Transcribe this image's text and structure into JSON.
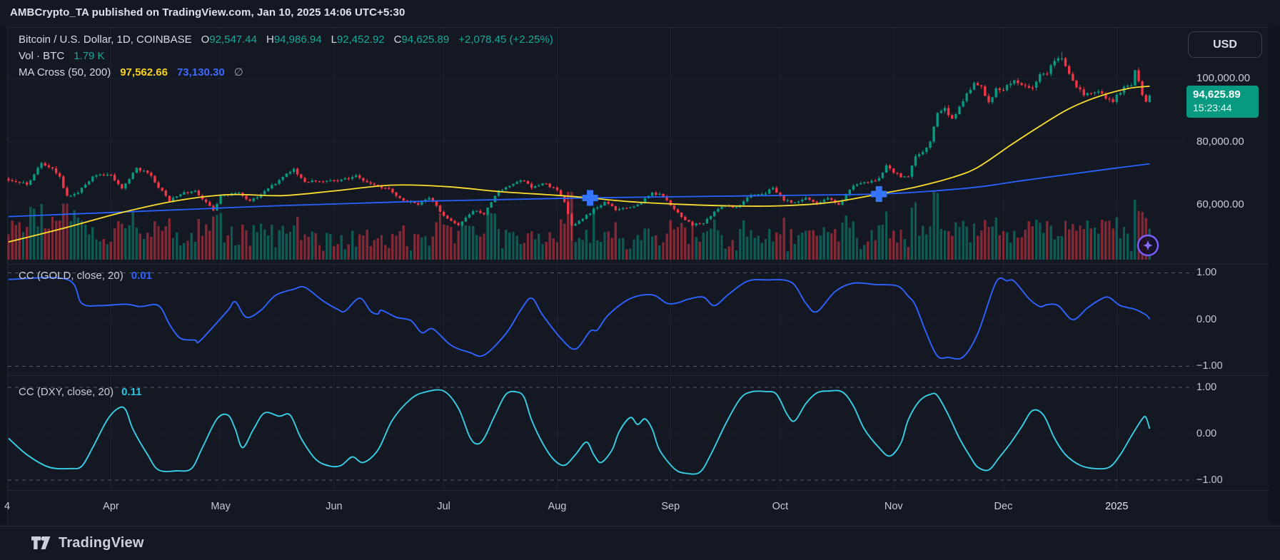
{
  "header": {
    "published_line": "AMBCrypto_TA published on TradingView.com, Jan 10, 2025 14:06 UTC+5:30"
  },
  "chart": {
    "legend": {
      "title": "Bitcoin / U.S. Dollar, 1D, COINBASE",
      "o_label": "O",
      "o": "92,547.44",
      "h_label": "H",
      "h": "94,986.94",
      "l_label": "L",
      "l": "92,452.92",
      "c_label": "C",
      "c": "94,625.89",
      "change": "+2,078.45 (+2.25%)",
      "vol_label": "Vol · BTC",
      "vol_value": "1.79 K",
      "ma_label": "MA Cross (50, 200)",
      "ma50_value": "97,562.66",
      "ma200_value": "73,130.30",
      "ma_suffix": "∅"
    },
    "price_axis": {
      "currency_button": "USD",
      "tick_100k": "100,000.00",
      "tick_80k": "80,000.00",
      "tick_60k": "60,000.00",
      "last_price": "94,625.89",
      "countdown": "15:23:44"
    },
    "pane_gold": {
      "label": "CC (GOLD, close, 20)",
      "value": "0.01",
      "tick_hi": "1.00",
      "tick_mid": "0.00",
      "tick_lo": "−1.00"
    },
    "pane_dxy": {
      "label": "CC (DXY, close, 20)",
      "value": "0.11",
      "tick_hi": "1.00",
      "tick_mid": "0.00",
      "tick_lo": "−1.00"
    },
    "time_axis": [
      {
        "label": "4",
        "d": 0
      },
      {
        "label": "Apr",
        "d": 28
      },
      {
        "label": "May",
        "d": 58
      },
      {
        "label": "Jun",
        "d": 89
      },
      {
        "label": "Jul",
        "d": 119
      },
      {
        "label": "Aug",
        "d": 150
      },
      {
        "label": "Sep",
        "d": 181
      },
      {
        "label": "Oct",
        "d": 211
      },
      {
        "label": "Nov",
        "d": 242
      },
      {
        "label": "Dec",
        "d": 272
      },
      {
        "label": "2025",
        "d": 303
      }
    ]
  },
  "footer": {
    "brand": "TradingView"
  },
  "colors": {
    "bg": "#141823",
    "grid": "#1d2230",
    "frame": "#242936",
    "separator": "#232837",
    "up": "#089981",
    "down": "#f23645",
    "vol_up": "rgba(8,153,129,0.5)",
    "vol_down": "rgba(242,54,69,0.5)",
    "ma50": "#fbde2f",
    "ma200": "#2962ff",
    "cc_gold": "#2f62ff",
    "cc_dxy": "#38cfe5",
    "marker_blue": "#3575ff",
    "accent_purple": "#7a5cff",
    "level_dash": "#565b66",
    "badge_green": "#089981"
  },
  "chart_data": {
    "type": "candlestick",
    "symbol": "Bitcoin / U.S. Dollar",
    "interval": "1D",
    "exchange": "COINBASE",
    "last_bar": {
      "open": 92547.44,
      "high": 94986.94,
      "low": 92452.92,
      "close": 94625.89,
      "change": 2078.45,
      "change_pct": 2.25
    },
    "volume_last_kbtc": 1.79,
    "price_axis_ticks": [
      100000,
      80000,
      60000
    ],
    "days_total": 312,
    "close_anchors_k": [
      [
        0,
        68.3
      ],
      [
        5,
        66.5
      ],
      [
        9,
        73.1
      ],
      [
        12,
        71.5
      ],
      [
        14,
        68.9
      ],
      [
        16,
        62.9
      ],
      [
        19,
        64.1
      ],
      [
        22,
        67.8
      ],
      [
        24,
        69.9
      ],
      [
        28,
        69.6
      ],
      [
        31,
        65.5
      ],
      [
        35,
        71.6
      ],
      [
        38,
        70.5
      ],
      [
        44,
        61.3
      ],
      [
        47,
        63.8
      ],
      [
        51,
        64.3
      ],
      [
        56,
        58.3
      ],
      [
        58,
        62.9
      ],
      [
        63,
        63.9
      ],
      [
        66,
        61.2
      ],
      [
        72,
        66.3
      ],
      [
        78,
        71.4
      ],
      [
        81,
        67.6
      ],
      [
        85,
        67.9
      ],
      [
        90,
        67.8
      ],
      [
        95,
        69.3
      ],
      [
        99,
        66.8
      ],
      [
        104,
        64.9
      ],
      [
        108,
        61.8
      ],
      [
        112,
        60.3
      ],
      [
        115,
        62.7
      ],
      [
        119,
        56.9
      ],
      [
        123,
        54.0
      ],
      [
        127,
        58.2
      ],
      [
        130,
        57.5
      ],
      [
        134,
        64.8
      ],
      [
        137,
        66.5
      ],
      [
        140,
        68.2
      ],
      [
        143,
        65.9
      ],
      [
        147,
        66.8
      ],
      [
        150,
        64.6
      ],
      [
        152,
        61.4
      ],
      [
        154,
        53.9
      ],
      [
        156,
        55.0
      ],
      [
        160,
        58.7
      ],
      [
        163,
        60.9
      ],
      [
        166,
        58.8
      ],
      [
        170,
        59.5
      ],
      [
        173,
        61.2
      ],
      [
        176,
        64.1
      ],
      [
        179,
        62.9
      ],
      [
        182,
        59.1
      ],
      [
        184,
        56.2
      ],
      [
        187,
        53.9
      ],
      [
        190,
        54.6
      ],
      [
        193,
        58.1
      ],
      [
        196,
        60.0
      ],
      [
        199,
        59.2
      ],
      [
        203,
        63.2
      ],
      [
        206,
        63.3
      ],
      [
        209,
        65.7
      ],
      [
        212,
        61.7
      ],
      [
        215,
        60.8
      ],
      [
        218,
        62.1
      ],
      [
        221,
        60.6
      ],
      [
        224,
        62.5
      ],
      [
        227,
        60.3
      ],
      [
        231,
        66.1
      ],
      [
        234,
        67.6
      ],
      [
        237,
        67.4
      ],
      [
        240,
        72.3
      ],
      [
        242,
        70.2
      ],
      [
        245,
        68.8
      ],
      [
        246,
        69.4
      ],
      [
        248,
        75.6
      ],
      [
        250,
        76.5
      ],
      [
        252,
        80.5
      ],
      [
        254,
        88.7
      ],
      [
        256,
        90.5
      ],
      [
        258,
        87.3
      ],
      [
        260,
        91.0
      ],
      [
        262,
        94.9
      ],
      [
        264,
        98.4
      ],
      [
        266,
        97.7
      ],
      [
        268,
        92.0
      ],
      [
        270,
        96.4
      ],
      [
        272,
        95.9
      ],
      [
        274,
        98.8
      ],
      [
        276,
        99.0
      ],
      [
        278,
        97.4
      ],
      [
        280,
        97.3
      ],
      [
        282,
        101.2
      ],
      [
        284,
        102.0
      ],
      [
        286,
        106.1
      ],
      [
        288,
        106.5
      ],
      [
        290,
        101.0
      ],
      [
        292,
        97.5
      ],
      [
        294,
        95.2
      ],
      [
        296,
        94.8
      ],
      [
        298,
        95.8
      ],
      [
        300,
        93.6
      ],
      [
        302,
        92.6
      ],
      [
        303,
        94.6
      ],
      [
        305,
        96.9
      ],
      [
        307,
        98.2
      ],
      [
        308,
        102.1
      ],
      [
        310,
        95.1
      ],
      [
        311,
        92.5
      ],
      [
        312,
        94.63
      ]
    ],
    "wick_overrides": [
      {
        "d": 9,
        "high": 73.8
      },
      {
        "d": 154,
        "low": 49.0
      },
      {
        "d": 288,
        "high": 108.4
      },
      {
        "d": 308,
        "high": 102.7
      },
      {
        "d": 312,
        "high": 94.99,
        "low": 92.45
      }
    ],
    "ma50_anchors_k": [
      [
        0,
        48.5
      ],
      [
        15,
        52.8
      ],
      [
        30,
        57.5
      ],
      [
        45,
        61.3
      ],
      [
        60,
        63.4
      ],
      [
        75,
        63.1
      ],
      [
        90,
        64.7
      ],
      [
        105,
        66.4
      ],
      [
        120,
        65.9
      ],
      [
        135,
        64.3
      ],
      [
        150,
        63.2
      ],
      [
        159,
        62.35
      ],
      [
        170,
        61.2
      ],
      [
        185,
        60.3
      ],
      [
        200,
        59.8
      ],
      [
        212,
        59.9
      ],
      [
        225,
        61.0
      ],
      [
        238,
        63.6
      ],
      [
        248,
        65.8
      ],
      [
        258,
        68.8
      ],
      [
        265,
        72.0
      ],
      [
        274,
        79.0
      ],
      [
        282,
        85.0
      ],
      [
        290,
        90.5
      ],
      [
        298,
        94.3
      ],
      [
        306,
        96.8
      ],
      [
        312,
        97.56
      ]
    ],
    "ma200_anchors_k": [
      [
        0,
        56.5
      ],
      [
        37,
        58.2
      ],
      [
        76,
        60.0
      ],
      [
        115,
        61.4
      ],
      [
        154,
        62.3
      ],
      [
        193,
        62.9
      ],
      [
        222,
        63.3
      ],
      [
        238,
        63.6
      ],
      [
        251,
        64.4
      ],
      [
        265,
        65.8
      ],
      [
        277,
        67.8
      ],
      [
        290,
        69.8
      ],
      [
        301,
        71.5
      ],
      [
        312,
        73.13
      ]
    ],
    "ma_cross_markers": [
      {
        "d": 159,
        "price_k": 62.37,
        "type": "death-cross"
      },
      {
        "d": 238,
        "price_k": 63.6,
        "type": "golden-cross"
      }
    ],
    "cc_gold": {
      "title": "CC (GOLD, close, 20)",
      "last_value": 0.01,
      "levels": [
        1,
        0,
        -1
      ],
      "anchors": [
        [
          0,
          0.86
        ],
        [
          16,
          0.86
        ],
        [
          20,
          0.35
        ],
        [
          25,
          0.3
        ],
        [
          32,
          0.33
        ],
        [
          36,
          0.28
        ],
        [
          41,
          0.3
        ],
        [
          44,
          -0.1
        ],
        [
          47,
          -0.4
        ],
        [
          51,
          -0.44
        ],
        [
          52,
          -0.48
        ],
        [
          56,
          -0.15
        ],
        [
          60,
          0.2
        ],
        [
          62,
          0.38
        ],
        [
          65,
          0.05
        ],
        [
          69,
          0.2
        ],
        [
          73,
          0.52
        ],
        [
          78,
          0.65
        ],
        [
          81,
          0.69
        ],
        [
          86,
          0.4
        ],
        [
          90,
          0.22
        ],
        [
          92,
          0.18
        ],
        [
          96,
          0.46
        ],
        [
          99,
          0.18
        ],
        [
          101,
          0.12
        ],
        [
          102,
          0.2
        ],
        [
          106,
          0.05
        ],
        [
          110,
          -0.02
        ],
        [
          113,
          -0.28
        ],
        [
          116,
          -0.2
        ],
        [
          121,
          -0.55
        ],
        [
          126,
          -0.7
        ],
        [
          130,
          -0.76
        ],
        [
          136,
          -0.3
        ],
        [
          140,
          0.2
        ],
        [
          143,
          0.46
        ],
        [
          146,
          0.1
        ],
        [
          151,
          -0.4
        ],
        [
          155,
          -0.63
        ],
        [
          159,
          -0.25
        ],
        [
          161,
          -0.22
        ],
        [
          164,
          0.1
        ],
        [
          170,
          0.45
        ],
        [
          176,
          0.53
        ],
        [
          180,
          0.35
        ],
        [
          183,
          0.36
        ],
        [
          186,
          0.44
        ],
        [
          190,
          0.48
        ],
        [
          193,
          0.3
        ],
        [
          197,
          0.55
        ],
        [
          202,
          0.82
        ],
        [
          207,
          0.85
        ],
        [
          214,
          0.8
        ],
        [
          218,
          0.35
        ],
        [
          221,
          0.17
        ],
        [
          226,
          0.6
        ],
        [
          231,
          0.78
        ],
        [
          237,
          0.75
        ],
        [
          243,
          0.72
        ],
        [
          246,
          0.5
        ],
        [
          248,
          0.3
        ],
        [
          251,
          -0.3
        ],
        [
          254,
          -0.78
        ],
        [
          257,
          -0.81
        ],
        [
          261,
          -0.8
        ],
        [
          265,
          -0.3
        ],
        [
          270,
          0.8
        ],
        [
          273,
          0.83
        ],
        [
          275,
          0.82
        ],
        [
          279,
          0.45
        ],
        [
          282,
          0.28
        ],
        [
          284,
          0.32
        ],
        [
          287,
          0.3
        ],
        [
          291,
          0.0
        ],
        [
          295,
          0.25
        ],
        [
          299,
          0.45
        ],
        [
          301,
          0.47
        ],
        [
          304,
          0.3
        ],
        [
          308,
          0.22
        ],
        [
          311,
          0.1
        ],
        [
          312,
          0.01
        ]
      ]
    },
    "cc_dxy": {
      "title": "CC (DXY, close, 20)",
      "last_value": 0.11,
      "levels": [
        1,
        0,
        -1
      ],
      "anchors": [
        [
          0,
          -0.1
        ],
        [
          5,
          -0.45
        ],
        [
          11,
          -0.72
        ],
        [
          17,
          -0.75
        ],
        [
          20,
          -0.7
        ],
        [
          23,
          -0.3
        ],
        [
          27,
          0.3
        ],
        [
          30,
          0.55
        ],
        [
          32,
          0.52
        ],
        [
          34,
          0.1
        ],
        [
          38,
          -0.45
        ],
        [
          41,
          -0.78
        ],
        [
          46,
          -0.8
        ],
        [
          50,
          -0.75
        ],
        [
          53,
          -0.3
        ],
        [
          57,
          0.32
        ],
        [
          60,
          0.4
        ],
        [
          62,
          0.1
        ],
        [
          64,
          -0.3
        ],
        [
          67,
          0.1
        ],
        [
          70,
          0.45
        ],
        [
          74,
          0.38
        ],
        [
          77,
          0.4
        ],
        [
          80,
          -0.1
        ],
        [
          84,
          -0.55
        ],
        [
          88,
          -0.7
        ],
        [
          91,
          -0.68
        ],
        [
          94,
          -0.5
        ],
        [
          97,
          -0.62
        ],
        [
          101,
          -0.35
        ],
        [
          105,
          0.3
        ],
        [
          110,
          0.75
        ],
        [
          114,
          0.9
        ],
        [
          119,
          0.92
        ],
        [
          123,
          0.55
        ],
        [
          126,
          -0.05
        ],
        [
          128,
          -0.22
        ],
        [
          130,
          -0.1
        ],
        [
          133,
          0.4
        ],
        [
          136,
          0.85
        ],
        [
          139,
          0.9
        ],
        [
          141,
          0.78
        ],
        [
          143,
          0.3
        ],
        [
          146,
          -0.2
        ],
        [
          149,
          -0.55
        ],
        [
          152,
          -0.68
        ],
        [
          155,
          -0.45
        ],
        [
          158,
          -0.18
        ],
        [
          160,
          -0.45
        ],
        [
          162,
          -0.62
        ],
        [
          165,
          -0.35
        ],
        [
          167,
          0.05
        ],
        [
          170,
          0.35
        ],
        [
          172,
          0.2
        ],
        [
          174,
          0.32
        ],
        [
          176,
          0.1
        ],
        [
          178,
          -0.35
        ],
        [
          182,
          -0.75
        ],
        [
          185,
          -0.85
        ],
        [
          189,
          -0.83
        ],
        [
          192,
          -0.45
        ],
        [
          196,
          0.2
        ],
        [
          200,
          0.75
        ],
        [
          203,
          0.9
        ],
        [
          207,
          0.91
        ],
        [
          210,
          0.85
        ],
        [
          213,
          0.4
        ],
        [
          215,
          0.28
        ],
        [
          218,
          0.65
        ],
        [
          221,
          0.88
        ],
        [
          224,
          0.92
        ],
        [
          228,
          0.9
        ],
        [
          231,
          0.6
        ],
        [
          234,
          0.1
        ],
        [
          238,
          -0.3
        ],
        [
          241,
          -0.48
        ],
        [
          244,
          -0.2
        ],
        [
          246,
          0.3
        ],
        [
          249,
          0.7
        ],
        [
          252,
          0.85
        ],
        [
          254,
          0.82
        ],
        [
          257,
          0.4
        ],
        [
          260,
          -0.1
        ],
        [
          263,
          -0.5
        ],
        [
          265,
          -0.72
        ],
        [
          268,
          -0.78
        ],
        [
          271,
          -0.5
        ],
        [
          274,
          -0.2
        ],
        [
          277,
          0.15
        ],
        [
          280,
          0.5
        ],
        [
          283,
          0.4
        ],
        [
          286,
          -0.1
        ],
        [
          289,
          -0.45
        ],
        [
          293,
          -0.68
        ],
        [
          297,
          -0.75
        ],
        [
          301,
          -0.72
        ],
        [
          304,
          -0.45
        ],
        [
          307,
          -0.05
        ],
        [
          310,
          0.32
        ],
        [
          311,
          0.35
        ],
        [
          312,
          0.11
        ]
      ]
    }
  }
}
